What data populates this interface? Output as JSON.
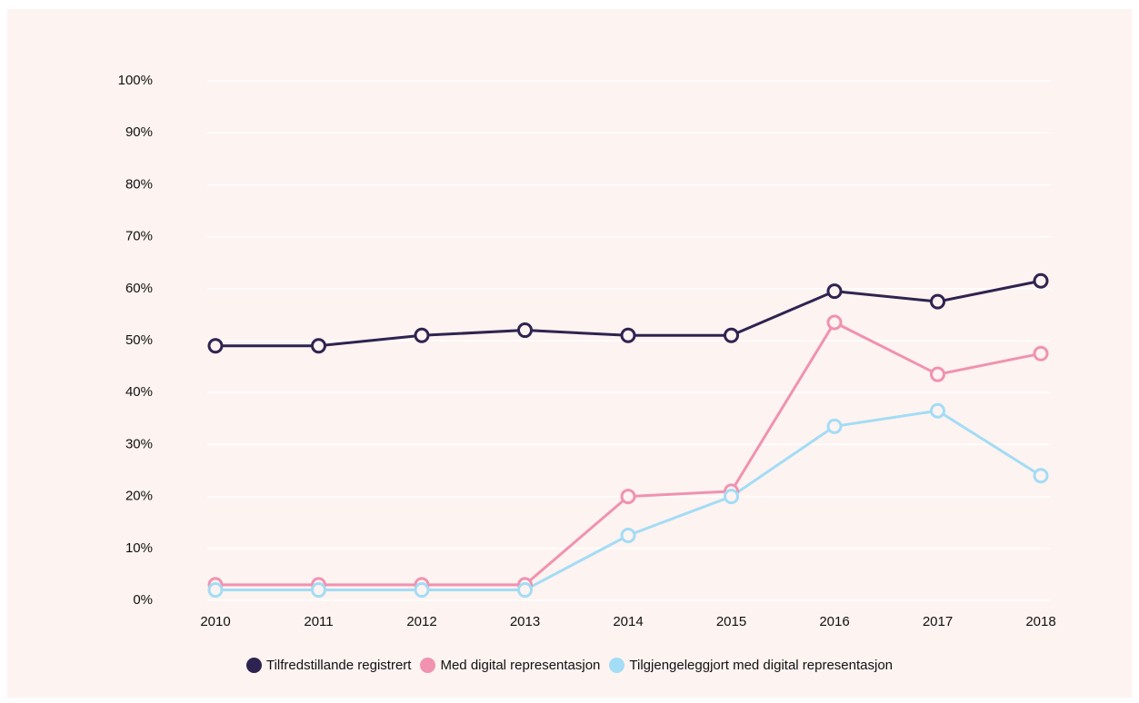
{
  "chart_data": {
    "type": "line",
    "categories": [
      "2010",
      "2011",
      "2012",
      "2013",
      "2014",
      "2015",
      "2016",
      "2017",
      "2018"
    ],
    "series": [
      {
        "name": "Tilfredstillande registrert",
        "color": "#2e2350",
        "values": [
          49,
          49,
          51,
          52,
          51,
          51,
          59.5,
          57.5,
          61.5
        ]
      },
      {
        "name": "Med digital representasjon",
        "color": "#f092b0",
        "values": [
          3,
          3,
          3,
          3,
          20,
          21,
          53.5,
          43.5,
          47.5
        ]
      },
      {
        "name": "Tilgjengeleggjort med digital representasjon",
        "color": "#a3dcf5",
        "values": [
          2,
          2,
          2,
          2,
          12.5,
          20,
          33.5,
          36.5,
          24
        ]
      }
    ],
    "ylim": [
      0,
      100
    ],
    "yticks": [
      {
        "value": 0,
        "label": "0%"
      },
      {
        "value": 10,
        "label": "10%"
      },
      {
        "value": 20,
        "label": "20%"
      },
      {
        "value": 30,
        "label": "30%"
      },
      {
        "value": 40,
        "label": "40%"
      },
      {
        "value": 50,
        "label": "50%"
      },
      {
        "value": 60,
        "label": "60%"
      },
      {
        "value": 70,
        "label": "70%"
      },
      {
        "value": 80,
        "label": "80%"
      },
      {
        "value": 90,
        "label": "90%"
      },
      {
        "value": 100,
        "label": "100%"
      }
    ],
    "grid": true,
    "legend": "bottom"
  }
}
